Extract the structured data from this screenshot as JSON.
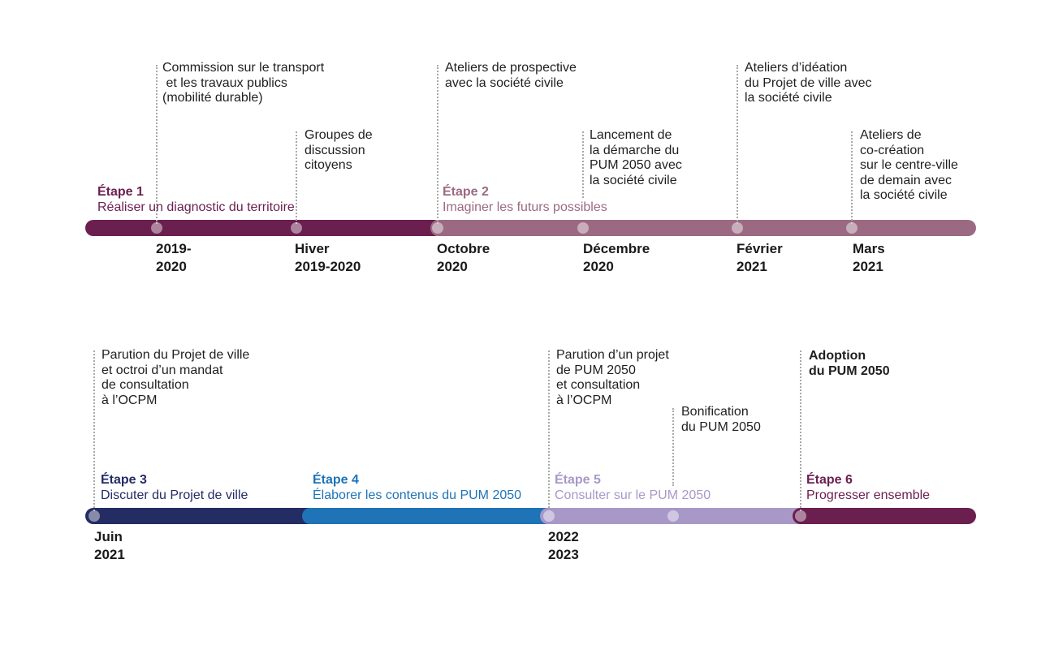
{
  "colors": {
    "stage1": "#6b1f4f",
    "stage2": "#9b6a82",
    "stage3": "#242c64",
    "stage4": "#1f73b7",
    "stage5": "#a898c8",
    "stage6": "#6b1f4f"
  },
  "row1": {
    "stages": [
      {
        "num": "Étape 1",
        "title": "Réaliser un diagnostic du territoire"
      },
      {
        "num": "Étape 2",
        "title": "Imaginer les futurs possibles"
      }
    ],
    "events": [
      {
        "text": "Commission sur le transport\n et les travaux publics\n(mobilité durable)",
        "date": "2019-\n2020"
      },
      {
        "text": "Groupes de\ndiscussion\ncitoyens",
        "date": "Hiver\n2019-2020"
      },
      {
        "text": "Ateliers de prospective\navec la société civile",
        "date": "Octobre\n2020"
      },
      {
        "text": "Lancement de\nla démarche du\nPUM 2050 avec\nla société civile",
        "date": "Décembre\n2020"
      },
      {
        "text": "Ateliers d’idéation\ndu Projet de ville avec\nla société civile",
        "date": "Février\n2021"
      },
      {
        "text": "Ateliers de\nco-création\nsur le centre-ville\nde demain avec\nla société civile",
        "date": "Mars\n2021"
      }
    ]
  },
  "row2": {
    "stages": [
      {
        "num": "Étape 3",
        "title": "Discuter du Projet de ville"
      },
      {
        "num": "Étape 4",
        "title": "Élaborer les contenus du PUM 2050"
      },
      {
        "num": "Étape 5",
        "title": "Consulter sur le PUM 2050"
      },
      {
        "num": "Étape 6",
        "title": "Progresser ensemble"
      }
    ],
    "events": [
      {
        "text": "Parution du Projet de ville\net octroi d’un mandat\nde consultation\nà l’OCPM",
        "date": "Juin\n2021"
      },
      {
        "text": "Parution d’un projet\nde PUM 2050\net consultation\nà l’OCPM",
        "date": "2022\n2023"
      },
      {
        "text": "Bonification\ndu PUM 2050",
        "date": ""
      },
      {
        "text": "Adoption\ndu PUM 2050",
        "date": ""
      }
    ]
  }
}
